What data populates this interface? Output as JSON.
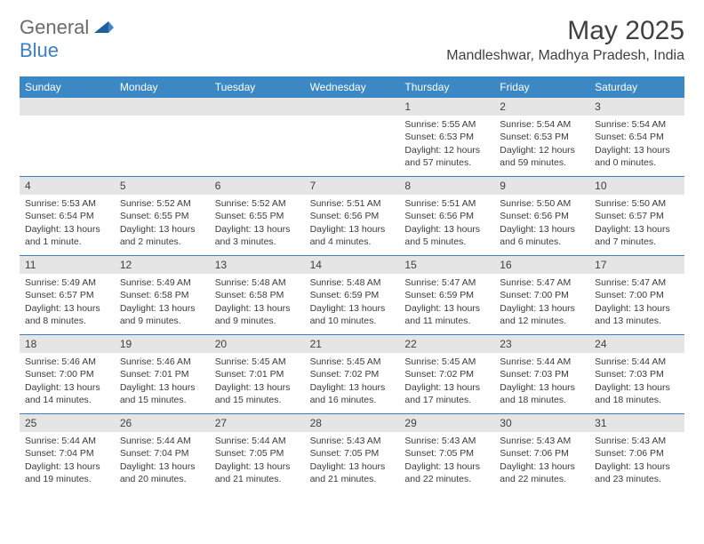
{
  "logo": {
    "text1": "General",
    "text2": "Blue"
  },
  "title": "May 2025",
  "location": "Mandleshwar, Madhya Pradesh, India",
  "colors": {
    "header_bg": "#3b88c4",
    "week_border": "#3b7fc4",
    "daynum_bg": "#e5e5e5",
    "text": "#3a3a3a",
    "logo_gray": "#6b6b6b",
    "logo_blue": "#3b7fc4"
  },
  "day_names": [
    "Sunday",
    "Monday",
    "Tuesday",
    "Wednesday",
    "Thursday",
    "Friday",
    "Saturday"
  ],
  "weeks": [
    [
      {
        "empty": true
      },
      {
        "empty": true
      },
      {
        "empty": true
      },
      {
        "empty": true
      },
      {
        "num": "1",
        "sunrise": "Sunrise: 5:55 AM",
        "sunset": "Sunset: 6:53 PM",
        "daylight": "Daylight: 12 hours and 57 minutes."
      },
      {
        "num": "2",
        "sunrise": "Sunrise: 5:54 AM",
        "sunset": "Sunset: 6:53 PM",
        "daylight": "Daylight: 12 hours and 59 minutes."
      },
      {
        "num": "3",
        "sunrise": "Sunrise: 5:54 AM",
        "sunset": "Sunset: 6:54 PM",
        "daylight": "Daylight: 13 hours and 0 minutes."
      }
    ],
    [
      {
        "num": "4",
        "sunrise": "Sunrise: 5:53 AM",
        "sunset": "Sunset: 6:54 PM",
        "daylight": "Daylight: 13 hours and 1 minute."
      },
      {
        "num": "5",
        "sunrise": "Sunrise: 5:52 AM",
        "sunset": "Sunset: 6:55 PM",
        "daylight": "Daylight: 13 hours and 2 minutes."
      },
      {
        "num": "6",
        "sunrise": "Sunrise: 5:52 AM",
        "sunset": "Sunset: 6:55 PM",
        "daylight": "Daylight: 13 hours and 3 minutes."
      },
      {
        "num": "7",
        "sunrise": "Sunrise: 5:51 AM",
        "sunset": "Sunset: 6:56 PM",
        "daylight": "Daylight: 13 hours and 4 minutes."
      },
      {
        "num": "8",
        "sunrise": "Sunrise: 5:51 AM",
        "sunset": "Sunset: 6:56 PM",
        "daylight": "Daylight: 13 hours and 5 minutes."
      },
      {
        "num": "9",
        "sunrise": "Sunrise: 5:50 AM",
        "sunset": "Sunset: 6:56 PM",
        "daylight": "Daylight: 13 hours and 6 minutes."
      },
      {
        "num": "10",
        "sunrise": "Sunrise: 5:50 AM",
        "sunset": "Sunset: 6:57 PM",
        "daylight": "Daylight: 13 hours and 7 minutes."
      }
    ],
    [
      {
        "num": "11",
        "sunrise": "Sunrise: 5:49 AM",
        "sunset": "Sunset: 6:57 PM",
        "daylight": "Daylight: 13 hours and 8 minutes."
      },
      {
        "num": "12",
        "sunrise": "Sunrise: 5:49 AM",
        "sunset": "Sunset: 6:58 PM",
        "daylight": "Daylight: 13 hours and 9 minutes."
      },
      {
        "num": "13",
        "sunrise": "Sunrise: 5:48 AM",
        "sunset": "Sunset: 6:58 PM",
        "daylight": "Daylight: 13 hours and 9 minutes."
      },
      {
        "num": "14",
        "sunrise": "Sunrise: 5:48 AM",
        "sunset": "Sunset: 6:59 PM",
        "daylight": "Daylight: 13 hours and 10 minutes."
      },
      {
        "num": "15",
        "sunrise": "Sunrise: 5:47 AM",
        "sunset": "Sunset: 6:59 PM",
        "daylight": "Daylight: 13 hours and 11 minutes."
      },
      {
        "num": "16",
        "sunrise": "Sunrise: 5:47 AM",
        "sunset": "Sunset: 7:00 PM",
        "daylight": "Daylight: 13 hours and 12 minutes."
      },
      {
        "num": "17",
        "sunrise": "Sunrise: 5:47 AM",
        "sunset": "Sunset: 7:00 PM",
        "daylight": "Daylight: 13 hours and 13 minutes."
      }
    ],
    [
      {
        "num": "18",
        "sunrise": "Sunrise: 5:46 AM",
        "sunset": "Sunset: 7:00 PM",
        "daylight": "Daylight: 13 hours and 14 minutes."
      },
      {
        "num": "19",
        "sunrise": "Sunrise: 5:46 AM",
        "sunset": "Sunset: 7:01 PM",
        "daylight": "Daylight: 13 hours and 15 minutes."
      },
      {
        "num": "20",
        "sunrise": "Sunrise: 5:45 AM",
        "sunset": "Sunset: 7:01 PM",
        "daylight": "Daylight: 13 hours and 15 minutes."
      },
      {
        "num": "21",
        "sunrise": "Sunrise: 5:45 AM",
        "sunset": "Sunset: 7:02 PM",
        "daylight": "Daylight: 13 hours and 16 minutes."
      },
      {
        "num": "22",
        "sunrise": "Sunrise: 5:45 AM",
        "sunset": "Sunset: 7:02 PM",
        "daylight": "Daylight: 13 hours and 17 minutes."
      },
      {
        "num": "23",
        "sunrise": "Sunrise: 5:44 AM",
        "sunset": "Sunset: 7:03 PM",
        "daylight": "Daylight: 13 hours and 18 minutes."
      },
      {
        "num": "24",
        "sunrise": "Sunrise: 5:44 AM",
        "sunset": "Sunset: 7:03 PM",
        "daylight": "Daylight: 13 hours and 18 minutes."
      }
    ],
    [
      {
        "num": "25",
        "sunrise": "Sunrise: 5:44 AM",
        "sunset": "Sunset: 7:04 PM",
        "daylight": "Daylight: 13 hours and 19 minutes."
      },
      {
        "num": "26",
        "sunrise": "Sunrise: 5:44 AM",
        "sunset": "Sunset: 7:04 PM",
        "daylight": "Daylight: 13 hours and 20 minutes."
      },
      {
        "num": "27",
        "sunrise": "Sunrise: 5:44 AM",
        "sunset": "Sunset: 7:05 PM",
        "daylight": "Daylight: 13 hours and 21 minutes."
      },
      {
        "num": "28",
        "sunrise": "Sunrise: 5:43 AM",
        "sunset": "Sunset: 7:05 PM",
        "daylight": "Daylight: 13 hours and 21 minutes."
      },
      {
        "num": "29",
        "sunrise": "Sunrise: 5:43 AM",
        "sunset": "Sunset: 7:05 PM",
        "daylight": "Daylight: 13 hours and 22 minutes."
      },
      {
        "num": "30",
        "sunrise": "Sunrise: 5:43 AM",
        "sunset": "Sunset: 7:06 PM",
        "daylight": "Daylight: 13 hours and 22 minutes."
      },
      {
        "num": "31",
        "sunrise": "Sunrise: 5:43 AM",
        "sunset": "Sunset: 7:06 PM",
        "daylight": "Daylight: 13 hours and 23 minutes."
      }
    ]
  ]
}
